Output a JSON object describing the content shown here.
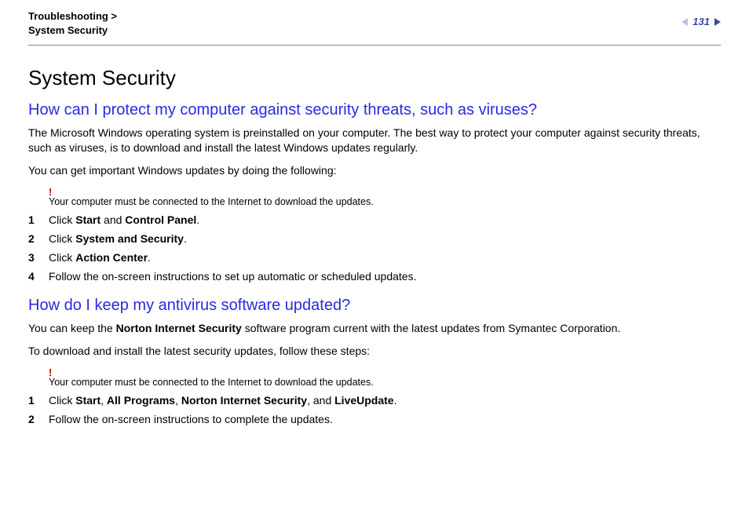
{
  "header": {
    "breadcrumb_line1": "Troubleshooting >",
    "breadcrumb_line2": "System Security",
    "page_number": "131"
  },
  "colors": {
    "heading_blue": "#2a2ae0",
    "page_num_blue": "#3a4aa8",
    "arrow_light": "#b7c1e6",
    "warning_red": "#d10000",
    "rule_gray": "#888888",
    "text_black": "#000000",
    "background": "#ffffff"
  },
  "section": {
    "title": "System Security",
    "q1": {
      "heading": "How can I protect my computer against security threats, such as viruses?",
      "para1": "The Microsoft Windows operating system is preinstalled on your computer. The best way to protect your computer against security threats, such as viruses, is to download and install the latest Windows updates regularly.",
      "para2": "You can get important Windows updates by doing the following:",
      "note_icon": "!",
      "note_text": "Your computer must be connected to the Internet to download the updates.",
      "steps": [
        {
          "n": "1",
          "pre": "Click ",
          "bold": [
            "Start",
            "Control Panel"
          ],
          "join": " and ",
          "post": "."
        },
        {
          "n": "2",
          "pre": "Click ",
          "bold": [
            "System and Security"
          ],
          "join": "",
          "post": "."
        },
        {
          "n": "3",
          "pre": "Click ",
          "bold": [
            "Action Center"
          ],
          "join": "",
          "post": "."
        },
        {
          "n": "4",
          "plain": "Follow the on-screen instructions to set up automatic or scheduled updates."
        }
      ]
    },
    "q2": {
      "heading": "How do I keep my antivirus software updated?",
      "para1_pre": "You can keep the ",
      "para1_bold": "Norton Internet Security",
      "para1_post": " software program current with the latest updates from Symantec Corporation.",
      "para2": "To download and install the latest security updates, follow these steps:",
      "note_icon": "!",
      "note_text": "Your computer must be connected to the Internet to download the updates.",
      "steps": [
        {
          "n": "1",
          "pre": "Click ",
          "bold": [
            "Start",
            "All Programs",
            "Norton Internet Security",
            "LiveUpdate"
          ],
          "join": ", ",
          "last_join": ", and ",
          "post": "."
        },
        {
          "n": "2",
          "plain": "Follow the on-screen instructions to complete the updates."
        }
      ]
    }
  }
}
